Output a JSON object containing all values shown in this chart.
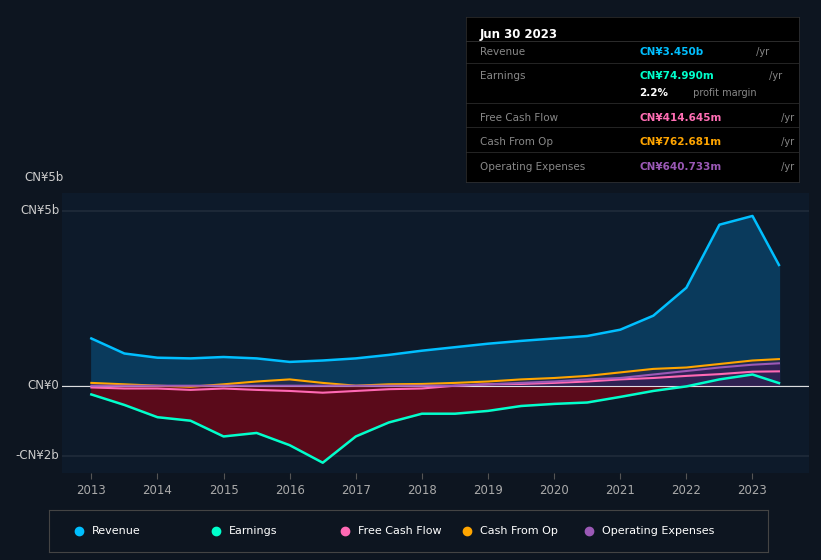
{
  "bg_color": "#0d1520",
  "plot_bg_color": "#0d1a2a",
  "years": [
    2013.0,
    2013.5,
    2014.0,
    2014.5,
    2015.0,
    2015.5,
    2016.0,
    2016.5,
    2017.0,
    2017.5,
    2018.0,
    2018.5,
    2019.0,
    2019.5,
    2020.0,
    2020.5,
    2021.0,
    2021.5,
    2022.0,
    2022.5,
    2023.0,
    2023.4
  ],
  "revenue": [
    1.35,
    0.92,
    0.8,
    0.78,
    0.82,
    0.78,
    0.68,
    0.72,
    0.78,
    0.88,
    1.0,
    1.1,
    1.2,
    1.28,
    1.35,
    1.42,
    1.6,
    2.0,
    2.8,
    4.6,
    4.85,
    3.45
  ],
  "earnings": [
    -0.25,
    -0.55,
    -0.9,
    -1.0,
    -1.45,
    -1.35,
    -1.7,
    -2.2,
    -1.45,
    -1.05,
    -0.8,
    -0.8,
    -0.72,
    -0.58,
    -0.52,
    -0.48,
    -0.32,
    -0.15,
    -0.02,
    0.18,
    0.32,
    0.075
  ],
  "free_cash_flow": [
    -0.05,
    -0.08,
    -0.08,
    -0.12,
    -0.08,
    -0.12,
    -0.15,
    -0.2,
    -0.15,
    -0.1,
    -0.08,
    0.0,
    0.04,
    0.05,
    0.08,
    0.12,
    0.18,
    0.22,
    0.28,
    0.33,
    0.4,
    0.41
  ],
  "cash_from_op": [
    0.08,
    0.04,
    0.0,
    -0.03,
    0.04,
    0.12,
    0.18,
    0.08,
    0.0,
    0.04,
    0.05,
    0.08,
    0.12,
    0.18,
    0.22,
    0.28,
    0.38,
    0.48,
    0.52,
    0.62,
    0.72,
    0.76
  ],
  "operating_expenses": [
    0.0,
    0.0,
    0.0,
    0.0,
    0.0,
    0.0,
    0.0,
    0.0,
    0.0,
    0.0,
    0.0,
    0.0,
    0.04,
    0.08,
    0.12,
    0.18,
    0.22,
    0.32,
    0.42,
    0.52,
    0.6,
    0.64
  ],
  "revenue_color": "#00bfff",
  "earnings_color": "#00ffcc",
  "free_cash_flow_color": "#ff69b4",
  "cash_from_op_color": "#ffa500",
  "operating_expenses_color": "#9b59b6",
  "revenue_fill_color": "#0a3a5c",
  "earnings_fill_color": "#5a0a1a",
  "ylim_lo": -2.5,
  "ylim_hi": 5.5,
  "xtick_years": [
    2013,
    2014,
    2015,
    2016,
    2017,
    2018,
    2019,
    2020,
    2021,
    2022,
    2023
  ],
  "ytick_vals": [
    -2,
    0,
    5
  ],
  "ytick_labels": [
    "-CN¥2b",
    "CN¥0",
    "CN¥5b"
  ],
  "info_title": "Jun 30 2023",
  "info_rows": [
    {
      "label": "Revenue",
      "value": "CN¥3.450b",
      "unit": " /yr",
      "color": "#00bfff"
    },
    {
      "label": "Earnings",
      "value": "CN¥74.990m",
      "unit": " /yr",
      "color": "#00ffcc"
    },
    {
      "label": "",
      "value": "2.2%",
      "unit": " profit margin",
      "color": "#ffffff"
    },
    {
      "label": "Free Cash Flow",
      "value": "CN¥414.645m",
      "unit": " /yr",
      "color": "#ff6eb4"
    },
    {
      "label": "Cash From Op",
      "value": "CN¥762.681m",
      "unit": " /yr",
      "color": "#ffa500"
    },
    {
      "label": "Operating Expenses",
      "value": "CN¥640.733m",
      "unit": " /yr",
      "color": "#9b59b6"
    }
  ],
  "legend_items": [
    {
      "label": "Revenue",
      "color": "#00bfff"
    },
    {
      "label": "Earnings",
      "color": "#00ffcc"
    },
    {
      "label": "Free Cash Flow",
      "color": "#ff69b4"
    },
    {
      "label": "Cash From Op",
      "color": "#ffa500"
    },
    {
      "label": "Operating Expenses",
      "color": "#9b59b6"
    }
  ]
}
